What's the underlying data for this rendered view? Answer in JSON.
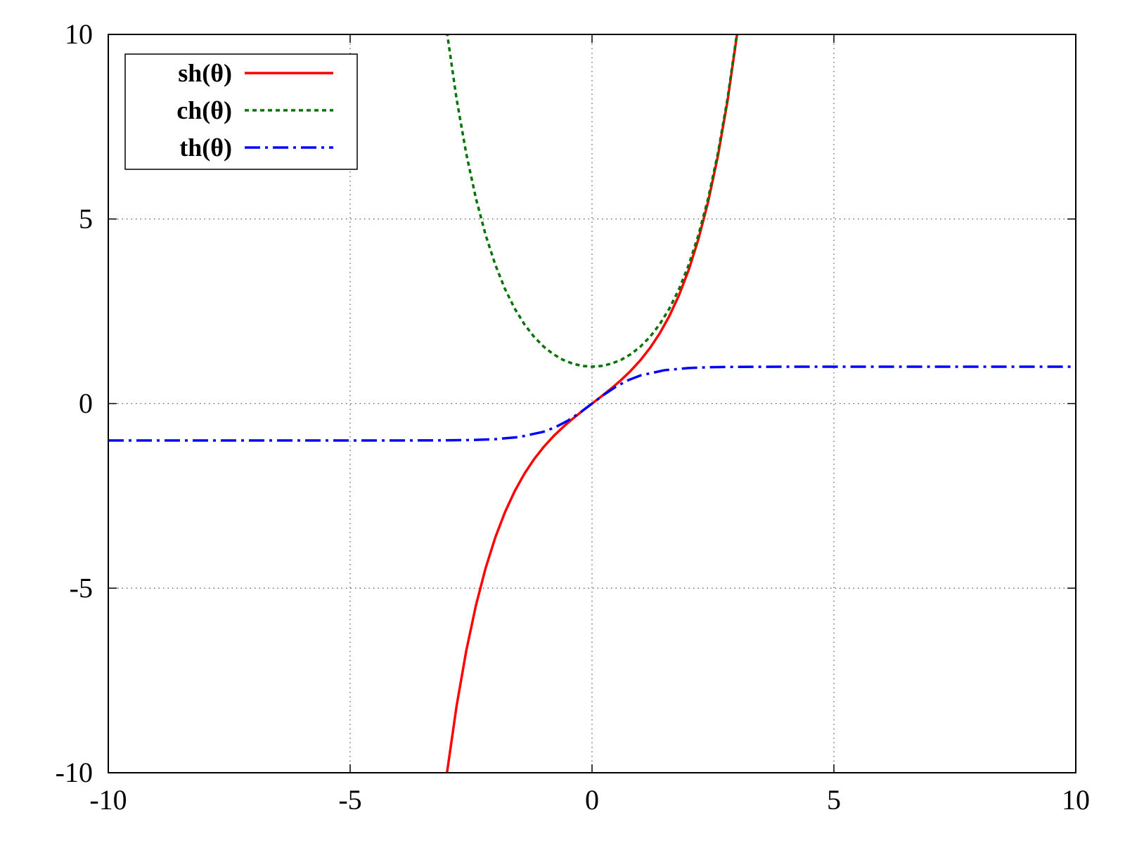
{
  "chart_data": {
    "type": "line",
    "title": "",
    "xlabel": "",
    "ylabel": "",
    "xlim": [
      -10,
      10
    ],
    "ylim": [
      -10,
      10
    ],
    "xticks": [
      -10,
      -5,
      0,
      5,
      10
    ],
    "yticks": [
      -10,
      -5,
      0,
      5,
      10
    ],
    "xtick_labels": [
      "-10",
      "-5",
      "0",
      "5",
      "10"
    ],
    "ytick_labels": [
      "-10",
      "-5",
      "0",
      "5",
      "10"
    ],
    "grid": true,
    "grid_style": "dotted",
    "legend_position": "top-left",
    "series": [
      {
        "name": "sh(θ)",
        "color": "#ff0000",
        "line_style": "solid",
        "x": [
          -3.0,
          -2.8,
          -2.6,
          -2.4,
          -2.2,
          -2.0,
          -1.8,
          -1.6,
          -1.4,
          -1.2,
          -1.0,
          -0.8,
          -0.6,
          -0.4,
          -0.2,
          0.0,
          0.2,
          0.4,
          0.6,
          0.8,
          1.0,
          1.2,
          1.4,
          1.6,
          1.8,
          2.0,
          2.2,
          2.4,
          2.6,
          2.8,
          3.0
        ],
        "y": [
          -10.018,
          -8.192,
          -6.695,
          -5.466,
          -4.457,
          -3.627,
          -2.942,
          -2.376,
          -1.904,
          -1.509,
          -1.175,
          -0.888,
          -0.637,
          -0.411,
          -0.201,
          0.0,
          0.201,
          0.411,
          0.637,
          0.888,
          1.175,
          1.509,
          1.904,
          2.376,
          2.942,
          3.627,
          4.457,
          5.466,
          6.695,
          8.192,
          10.018
        ]
      },
      {
        "name": "ch(θ)",
        "color": "#007400",
        "line_style": "dashed",
        "x": [
          -3.0,
          -2.8,
          -2.6,
          -2.4,
          -2.2,
          -2.0,
          -1.8,
          -1.6,
          -1.4,
          -1.2,
          -1.0,
          -0.8,
          -0.6,
          -0.4,
          -0.2,
          0.0,
          0.2,
          0.4,
          0.6,
          0.8,
          1.0,
          1.2,
          1.4,
          1.6,
          1.8,
          2.0,
          2.2,
          2.4,
          2.6,
          2.8,
          3.0
        ],
        "y": [
          10.068,
          8.253,
          6.769,
          5.557,
          4.568,
          3.762,
          3.107,
          2.577,
          2.151,
          1.811,
          1.543,
          1.337,
          1.185,
          1.081,
          1.02,
          1.0,
          1.02,
          1.081,
          1.185,
          1.337,
          1.543,
          1.811,
          2.151,
          2.577,
          3.107,
          3.762,
          4.568,
          5.557,
          6.769,
          8.253,
          10.068
        ]
      },
      {
        "name": "th(θ)",
        "color": "#0000ff",
        "line_style": "dash-dot",
        "x": [
          -10,
          -8,
          -6,
          -5,
          -4,
          -3,
          -2.5,
          -2,
          -1.5,
          -1,
          -0.75,
          -0.5,
          -0.25,
          0,
          0.25,
          0.5,
          0.75,
          1,
          1.5,
          2,
          2.5,
          3,
          4,
          5,
          6,
          8,
          10
        ],
        "y": [
          -1.0,
          -1.0,
          -1.0,
          -1.0,
          -0.999,
          -0.995,
          -0.987,
          -0.964,
          -0.905,
          -0.762,
          -0.635,
          -0.462,
          -0.245,
          0.0,
          0.245,
          0.462,
          0.635,
          0.762,
          0.905,
          0.964,
          0.987,
          0.995,
          0.999,
          1.0,
          1.0,
          1.0,
          1.0
        ]
      }
    ]
  }
}
